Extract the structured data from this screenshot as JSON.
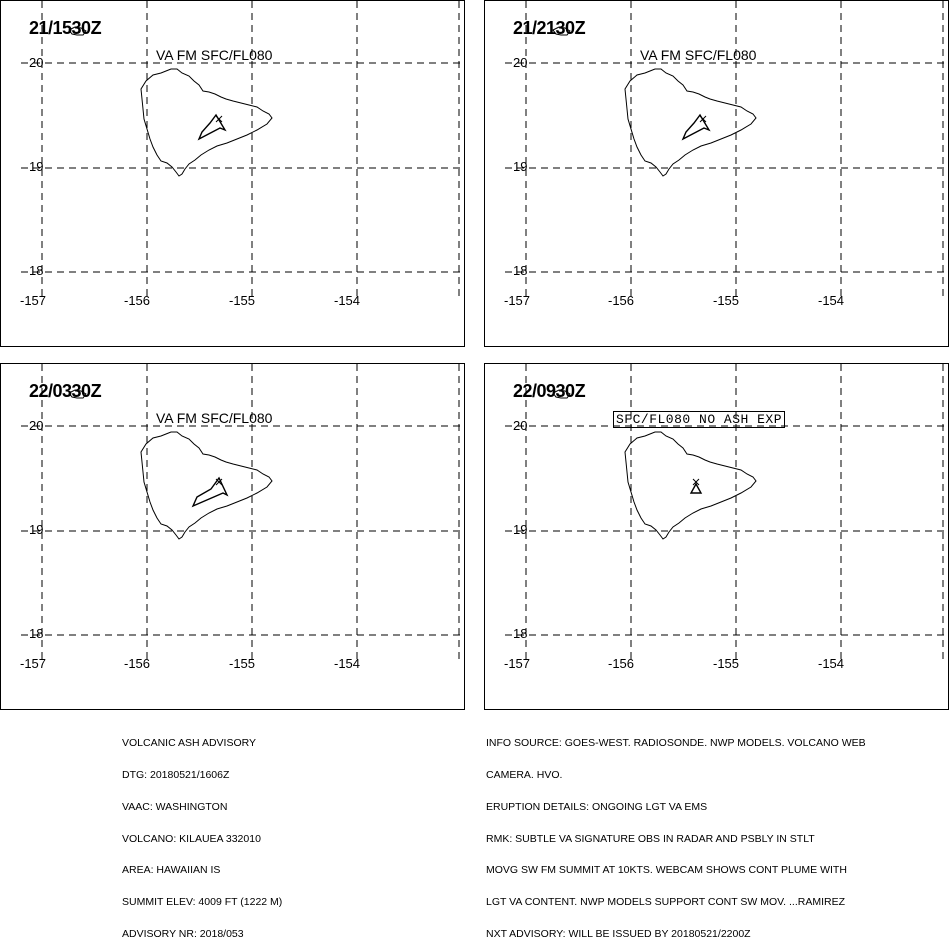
{
  "panels": [
    {
      "time": "21/1530Z",
      "label": "VA FM SFC/FL080",
      "boxed": false,
      "plume": "small"
    },
    {
      "time": "21/2130Z",
      "label": "VA FM SFC/FL080",
      "boxed": false,
      "plume": "small"
    },
    {
      "time": "22/0330Z",
      "label": "VA FM SFC/FL080",
      "boxed": false,
      "plume": "long"
    },
    {
      "time": "22/0930Z",
      "label": "SFC/FL080 NO ASH EXP",
      "boxed": true,
      "plume": "none"
    }
  ],
  "axes": {
    "lat_labels": [
      "20",
      "19",
      "18"
    ],
    "lon_labels": [
      "-157",
      "-156",
      "-155",
      "-154"
    ]
  },
  "advisory_left": {
    "title": "VOLCANIC ASH ADVISORY",
    "dtg": "DTG: 20180521/1606Z",
    "vaac": "VAAC: WASHINGTON",
    "volcano": "VOLCANO: KILAUEA 332010",
    "area": "AREA: HAWAIIAN IS",
    "summit": "SUMMIT ELEV: 4009 FT (1222 M)",
    "advisory_nr": "ADVISORY NR: 2018/053"
  },
  "advisory_right": {
    "info_source_1": "INFO SOURCE: GOES-WEST. RADIOSONDE. NWP MODELS. VOLCANO WEB",
    "info_source_2": "CAMERA. HVO.",
    "eruption": "ERUPTION DETAILS: ONGOING LGT VA EMS",
    "rmk_1": "RMK: SUBTLE VA SIGNATURE OBS IN RADAR AND PSBLY IN STLT",
    "rmk_2": "MOVG SW FM SUMMIT AT 10KTS. WEBCAM SHOWS CONT PLUME WITH",
    "rmk_3": "LGT VA CONTENT. NWP MODELS SUPPORT CONT SW MOV. ...RAMIREZ",
    "next": "NXT ADVISORY: WILL BE ISSUED BY 20180521/2200Z"
  },
  "colors": {
    "line": "#000000",
    "background": "#ffffff"
  }
}
